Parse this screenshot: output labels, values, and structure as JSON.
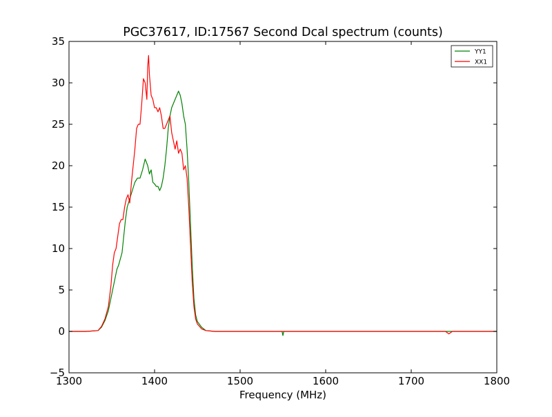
{
  "chart_data": {
    "type": "line",
    "title": "PGC37617, ID:17567 Second Dcal spectrum (counts)",
    "xlabel": "Frequency (MHz)",
    "ylabel": "",
    "xlim": [
      1300,
      1800
    ],
    "ylim": [
      -5,
      35
    ],
    "x_ticks": [
      1300,
      1400,
      1500,
      1600,
      1700,
      1800
    ],
    "y_ticks": [
      -5,
      0,
      5,
      10,
      15,
      20,
      25,
      30,
      35
    ],
    "x_tick_labels": [
      "1300",
      "1400",
      "1500",
      "1600",
      "1700",
      "1800"
    ],
    "y_tick_labels": [
      "−5",
      "0",
      "5",
      "10",
      "15",
      "20",
      "25",
      "30",
      "35"
    ],
    "grid": false,
    "legend_position": "top-right",
    "series": [
      {
        "name": "YY1",
        "color": "#008000",
        "x": [
          1300,
          1320,
          1334,
          1338,
          1342,
          1346,
          1350,
          1354,
          1356,
          1358,
          1362,
          1364,
          1366,
          1368,
          1371,
          1374,
          1377,
          1380,
          1383,
          1386,
          1389,
          1392,
          1394,
          1396,
          1398,
          1400,
          1402,
          1404,
          1406,
          1408,
          1410,
          1412,
          1414,
          1416,
          1418,
          1420,
          1422,
          1424,
          1426,
          1428,
          1430,
          1432,
          1434,
          1436,
          1438,
          1440,
          1442,
          1444,
          1446,
          1448,
          1450,
          1455,
          1460,
          1470,
          1500,
          1549,
          1550,
          1551,
          1600,
          1700,
          1800
        ],
        "y": [
          0,
          0,
          0.1,
          0.5,
          1.3,
          2.5,
          4.5,
          6.5,
          7.5,
          8.0,
          9.5,
          11.5,
          13.5,
          15.0,
          16.0,
          17.0,
          18.0,
          18.5,
          18.5,
          19.5,
          20.8,
          20.0,
          19.0,
          19.5,
          18.0,
          17.8,
          17.5,
          17.5,
          17.0,
          17.5,
          18.5,
          20.0,
          22.0,
          24.5,
          26.0,
          27.0,
          27.5,
          28.0,
          28.5,
          29.0,
          28.5,
          27.5,
          26.0,
          25.0,
          22.0,
          18.0,
          13.0,
          8.0,
          4.0,
          2.0,
          1.2,
          0.5,
          0.1,
          0,
          0,
          0,
          -0.5,
          0,
          0,
          0,
          0
        ]
      },
      {
        "name": "XX1",
        "color": "#ff0000",
        "x": [
          1300,
          1320,
          1334,
          1338,
          1342,
          1346,
          1349,
          1351,
          1353,
          1355,
          1357,
          1359,
          1361,
          1363,
          1365,
          1367,
          1369,
          1371,
          1373,
          1375,
          1377,
          1379,
          1381,
          1383,
          1385,
          1387,
          1389,
          1391,
          1392,
          1393,
          1394,
          1396,
          1398,
          1400,
          1402,
          1404,
          1406,
          1408,
          1410,
          1412,
          1414,
          1416,
          1418,
          1420,
          1422,
          1424,
          1426,
          1428,
          1430,
          1432,
          1434,
          1436,
          1438,
          1440,
          1442,
          1444,
          1446,
          1448,
          1450,
          1455,
          1460,
          1465,
          1470,
          1500,
          1600,
          1740,
          1744,
          1748,
          1800
        ],
        "y": [
          0,
          0,
          0.1,
          0.6,
          1.5,
          3.0,
          5.5,
          8.0,
          9.5,
          10.0,
          11.5,
          13.0,
          13.5,
          13.5,
          15.0,
          16.0,
          16.5,
          15.5,
          18.0,
          20.0,
          22.0,
          24.5,
          25.0,
          25.0,
          27.5,
          30.5,
          30.0,
          28.0,
          32.0,
          33.3,
          31.0,
          28.5,
          28.0,
          27.0,
          27.0,
          26.5,
          27.0,
          26.0,
          24.5,
          24.5,
          25.0,
          25.5,
          26.0,
          24.0,
          23.0,
          22.0,
          23.0,
          21.5,
          22.0,
          21.5,
          19.5,
          20.0,
          18.5,
          15.0,
          10.5,
          6.0,
          3.0,
          1.5,
          0.9,
          0.3,
          0.1,
          0.05,
          0,
          0,
          0,
          0,
          -0.3,
          0,
          0
        ]
      }
    ]
  }
}
